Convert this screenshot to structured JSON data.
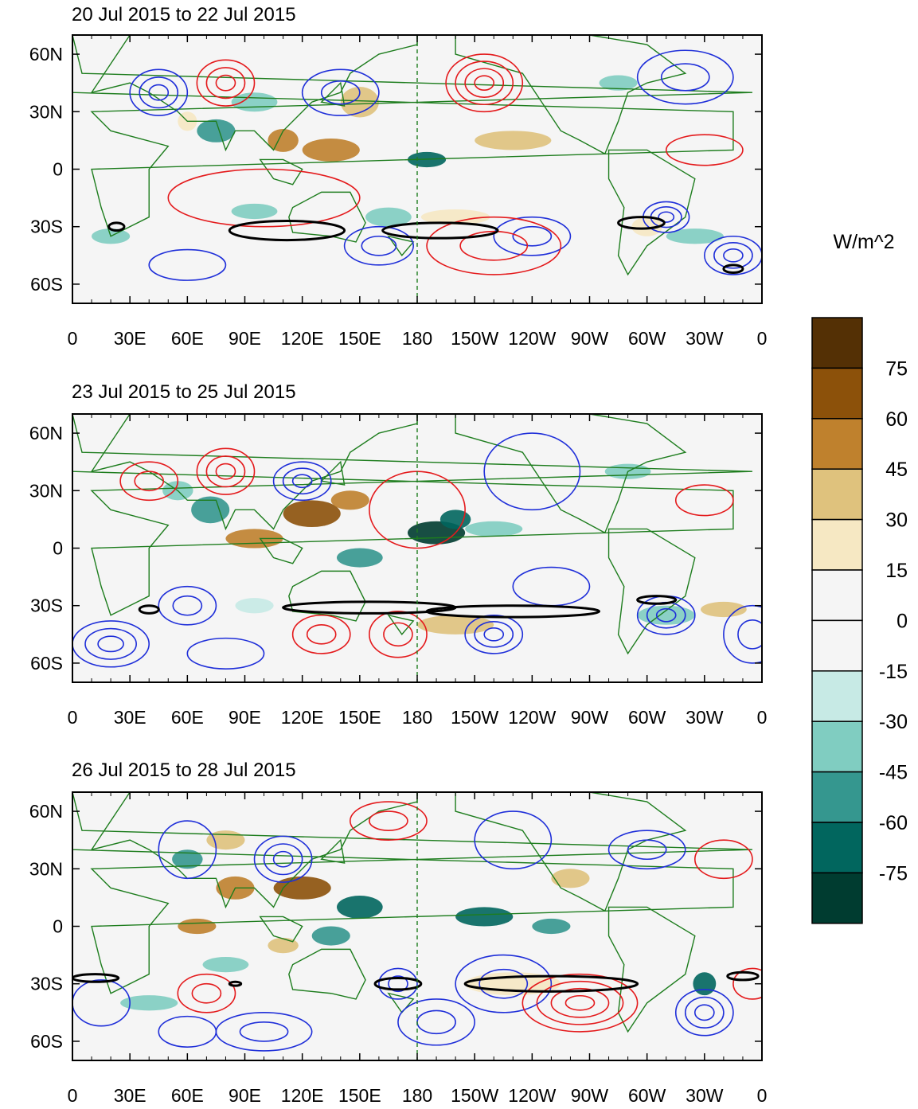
{
  "figure": {
    "unit_label": "W/m^2",
    "x_ticks": [
      "0",
      "30E",
      "60E",
      "90E",
      "120E",
      "150E",
      "180",
      "150W",
      "120W",
      "90W",
      "60W",
      "30W",
      "0"
    ],
    "y_ticks": [
      "60N",
      "30N",
      "0",
      "30S",
      "60S"
    ],
    "x_tick_lons": [
      0,
      30,
      60,
      90,
      120,
      150,
      180,
      210,
      240,
      270,
      300,
      330,
      360
    ],
    "y_tick_lats": [
      60,
      30,
      0,
      -30,
      -60
    ],
    "lon_range": [
      0,
      360
    ],
    "lat_range": [
      -70,
      70
    ],
    "colorbar": {
      "labels": [
        "75",
        "60",
        "45",
        "30",
        "15",
        "0",
        "-15",
        "-30",
        "-45",
        "-60",
        "-75"
      ],
      "colors": [
        "#543005",
        "#8c510a",
        "#bf812d",
        "#dfc27d",
        "#f6e8c3",
        "#f5f5f5",
        "#f5f5f5",
        "#c7eae5",
        "#80cdc1",
        "#35978f",
        "#01665e",
        "#003c30"
      ]
    },
    "colors": {
      "positive_contour": "#e41a1c",
      "negative_contour": "#1f2fd9",
      "thick_contour": "#000000",
      "coastline": "#1e7d1e",
      "dateline": "#1e7d1e"
    }
  },
  "panels": [
    {
      "title": "20 Jul 2015 to 22 Jul 2015"
    },
    {
      "title": "23 Jul 2015 to 25 Jul 2015"
    },
    {
      "title": "26 Jul 2015 to 28 Jul 2015"
    }
  ]
}
